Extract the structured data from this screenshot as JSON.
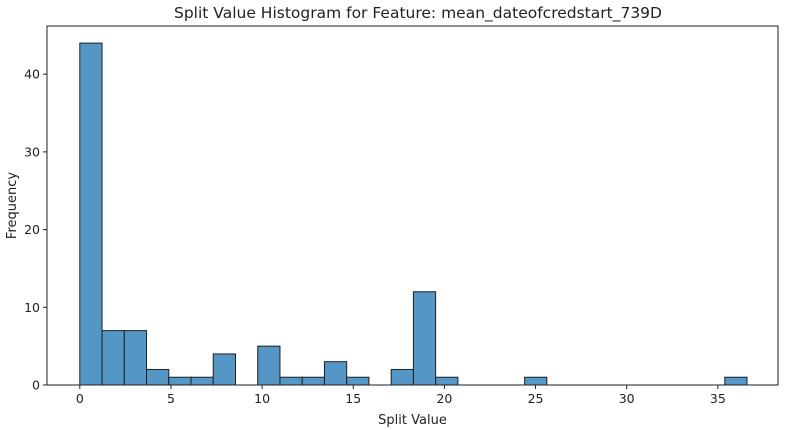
{
  "chart_data": {
    "type": "bar",
    "title": "Split Value Histogram for Feature: mean_dateofcredstart_739D",
    "xlabel": "Split Value",
    "ylabel": "Frequency",
    "xlim": [
      -1.8,
      38.3
    ],
    "ylim": [
      0,
      46.2
    ],
    "xticks": [
      0,
      5,
      10,
      15,
      20,
      25,
      30,
      35
    ],
    "yticks": [
      0,
      10,
      20,
      30,
      40
    ],
    "grid": false,
    "legend": "none",
    "bar_color": "#5497c7",
    "edge_color": "#1f1f1f",
    "bins": [
      {
        "x0": 0.0,
        "x1": 1.22,
        "count": 44
      },
      {
        "x0": 1.22,
        "x1": 2.44,
        "count": 7
      },
      {
        "x0": 2.44,
        "x1": 3.66,
        "count": 7
      },
      {
        "x0": 3.66,
        "x1": 4.88,
        "count": 2
      },
      {
        "x0": 4.88,
        "x1": 6.1,
        "count": 1
      },
      {
        "x0": 6.1,
        "x1": 7.32,
        "count": 1
      },
      {
        "x0": 7.32,
        "x1": 8.54,
        "count": 4
      },
      {
        "x0": 8.54,
        "x1": 9.76,
        "count": 0
      },
      {
        "x0": 9.76,
        "x1": 10.98,
        "count": 5
      },
      {
        "x0": 10.98,
        "x1": 12.2,
        "count": 1
      },
      {
        "x0": 12.2,
        "x1": 13.42,
        "count": 1
      },
      {
        "x0": 13.42,
        "x1": 14.64,
        "count": 3
      },
      {
        "x0": 14.64,
        "x1": 15.86,
        "count": 1
      },
      {
        "x0": 15.86,
        "x1": 17.08,
        "count": 0
      },
      {
        "x0": 17.08,
        "x1": 18.3,
        "count": 2
      },
      {
        "x0": 18.3,
        "x1": 19.52,
        "count": 12
      },
      {
        "x0": 19.52,
        "x1": 20.74,
        "count": 1
      },
      {
        "x0": 20.74,
        "x1": 21.96,
        "count": 0
      },
      {
        "x0": 21.96,
        "x1": 23.18,
        "count": 0
      },
      {
        "x0": 23.18,
        "x1": 24.4,
        "count": 0
      },
      {
        "x0": 24.4,
        "x1": 25.62,
        "count": 1
      },
      {
        "x0": 25.62,
        "x1": 26.84,
        "count": 0
      },
      {
        "x0": 26.84,
        "x1": 28.06,
        "count": 0
      },
      {
        "x0": 28.06,
        "x1": 29.28,
        "count": 0
      },
      {
        "x0": 29.28,
        "x1": 30.5,
        "count": 0
      },
      {
        "x0": 30.5,
        "x1": 31.72,
        "count": 0
      },
      {
        "x0": 31.72,
        "x1": 32.94,
        "count": 0
      },
      {
        "x0": 32.94,
        "x1": 34.16,
        "count": 0
      },
      {
        "x0": 34.16,
        "x1": 35.38,
        "count": 0
      },
      {
        "x0": 35.38,
        "x1": 36.6,
        "count": 1
      }
    ]
  }
}
